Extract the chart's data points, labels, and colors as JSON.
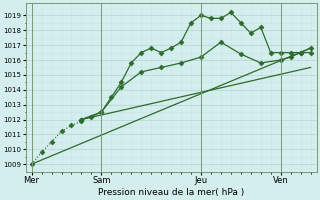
{
  "xlabel": "Pression niveau de la mer( hPa )",
  "bg_color": "#d4eeee",
  "grid_major_color": "#b8d8d8",
  "grid_minor_color": "#c8e4e4",
  "line_color": "#2d6b2d",
  "ylim": [
    1008.5,
    1019.8
  ],
  "yticks": [
    1009,
    1010,
    1011,
    1012,
    1013,
    1014,
    1015,
    1016,
    1017,
    1018,
    1019
  ],
  "xlim": [
    -0.3,
    14.3
  ],
  "xtick_labels": [
    "Mer",
    "Sam",
    "Jeu",
    "Ven"
  ],
  "xtick_positions": [
    0,
    3.5,
    8.5,
    12.5
  ],
  "vlines": [
    0,
    3.5,
    8.5,
    12.5
  ],
  "series1_dotted": {
    "x": [
      0,
      0.5,
      1.0,
      1.5,
      2.0,
      2.5
    ],
    "y": [
      1009.0,
      1009.8,
      1010.5,
      1011.2,
      1011.6,
      1011.9
    ],
    "marker": "D",
    "markersize": 2.5,
    "linewidth": 0.8,
    "linestyle": ":"
  },
  "series_wavy": {
    "x": [
      2.5,
      3.0,
      3.5,
      4.0,
      4.5,
      5.0,
      5.5,
      6.0,
      6.5,
      7.0,
      7.5,
      8.0,
      8.5,
      9.0,
      9.5,
      10.0,
      10.5,
      11.0,
      11.5,
      12.0,
      12.5,
      13.0,
      13.5,
      14.0
    ],
    "y": [
      1012.0,
      1012.2,
      1012.5,
      1013.5,
      1014.5,
      1015.8,
      1016.5,
      1016.8,
      1016.5,
      1016.8,
      1017.2,
      1018.5,
      1019.0,
      1018.8,
      1018.8,
      1019.2,
      1018.5,
      1017.8,
      1018.2,
      1016.5,
      1016.5,
      1016.5,
      1016.5,
      1016.5
    ],
    "marker": "D",
    "markersize": 2.5,
    "linewidth": 0.9,
    "linestyle": "-"
  },
  "series_straight1": {
    "x": [
      0,
      14.0
    ],
    "y": [
      1009.0,
      1016.8
    ],
    "marker": null,
    "linewidth": 0.9,
    "linestyle": "-"
  },
  "series_straight2": {
    "x": [
      2.5,
      14.0
    ],
    "y": [
      1012.0,
      1015.5
    ],
    "marker": null,
    "linewidth": 0.9,
    "linestyle": "-"
  },
  "series_mid": {
    "x": [
      2.5,
      3.5,
      4.5,
      5.5,
      6.5,
      7.5,
      8.5,
      9.5,
      10.5,
      11.5,
      12.5,
      13.0,
      13.5,
      14.0
    ],
    "y": [
      1012.0,
      1012.5,
      1014.2,
      1015.2,
      1015.5,
      1015.8,
      1016.2,
      1017.2,
      1016.4,
      1015.8,
      1016.0,
      1016.2,
      1016.5,
      1016.8
    ],
    "marker": "D",
    "markersize": 2.5,
    "linewidth": 0.9,
    "linestyle": "-"
  },
  "figsize": [
    3.2,
    2.0
  ],
  "dpi": 100
}
